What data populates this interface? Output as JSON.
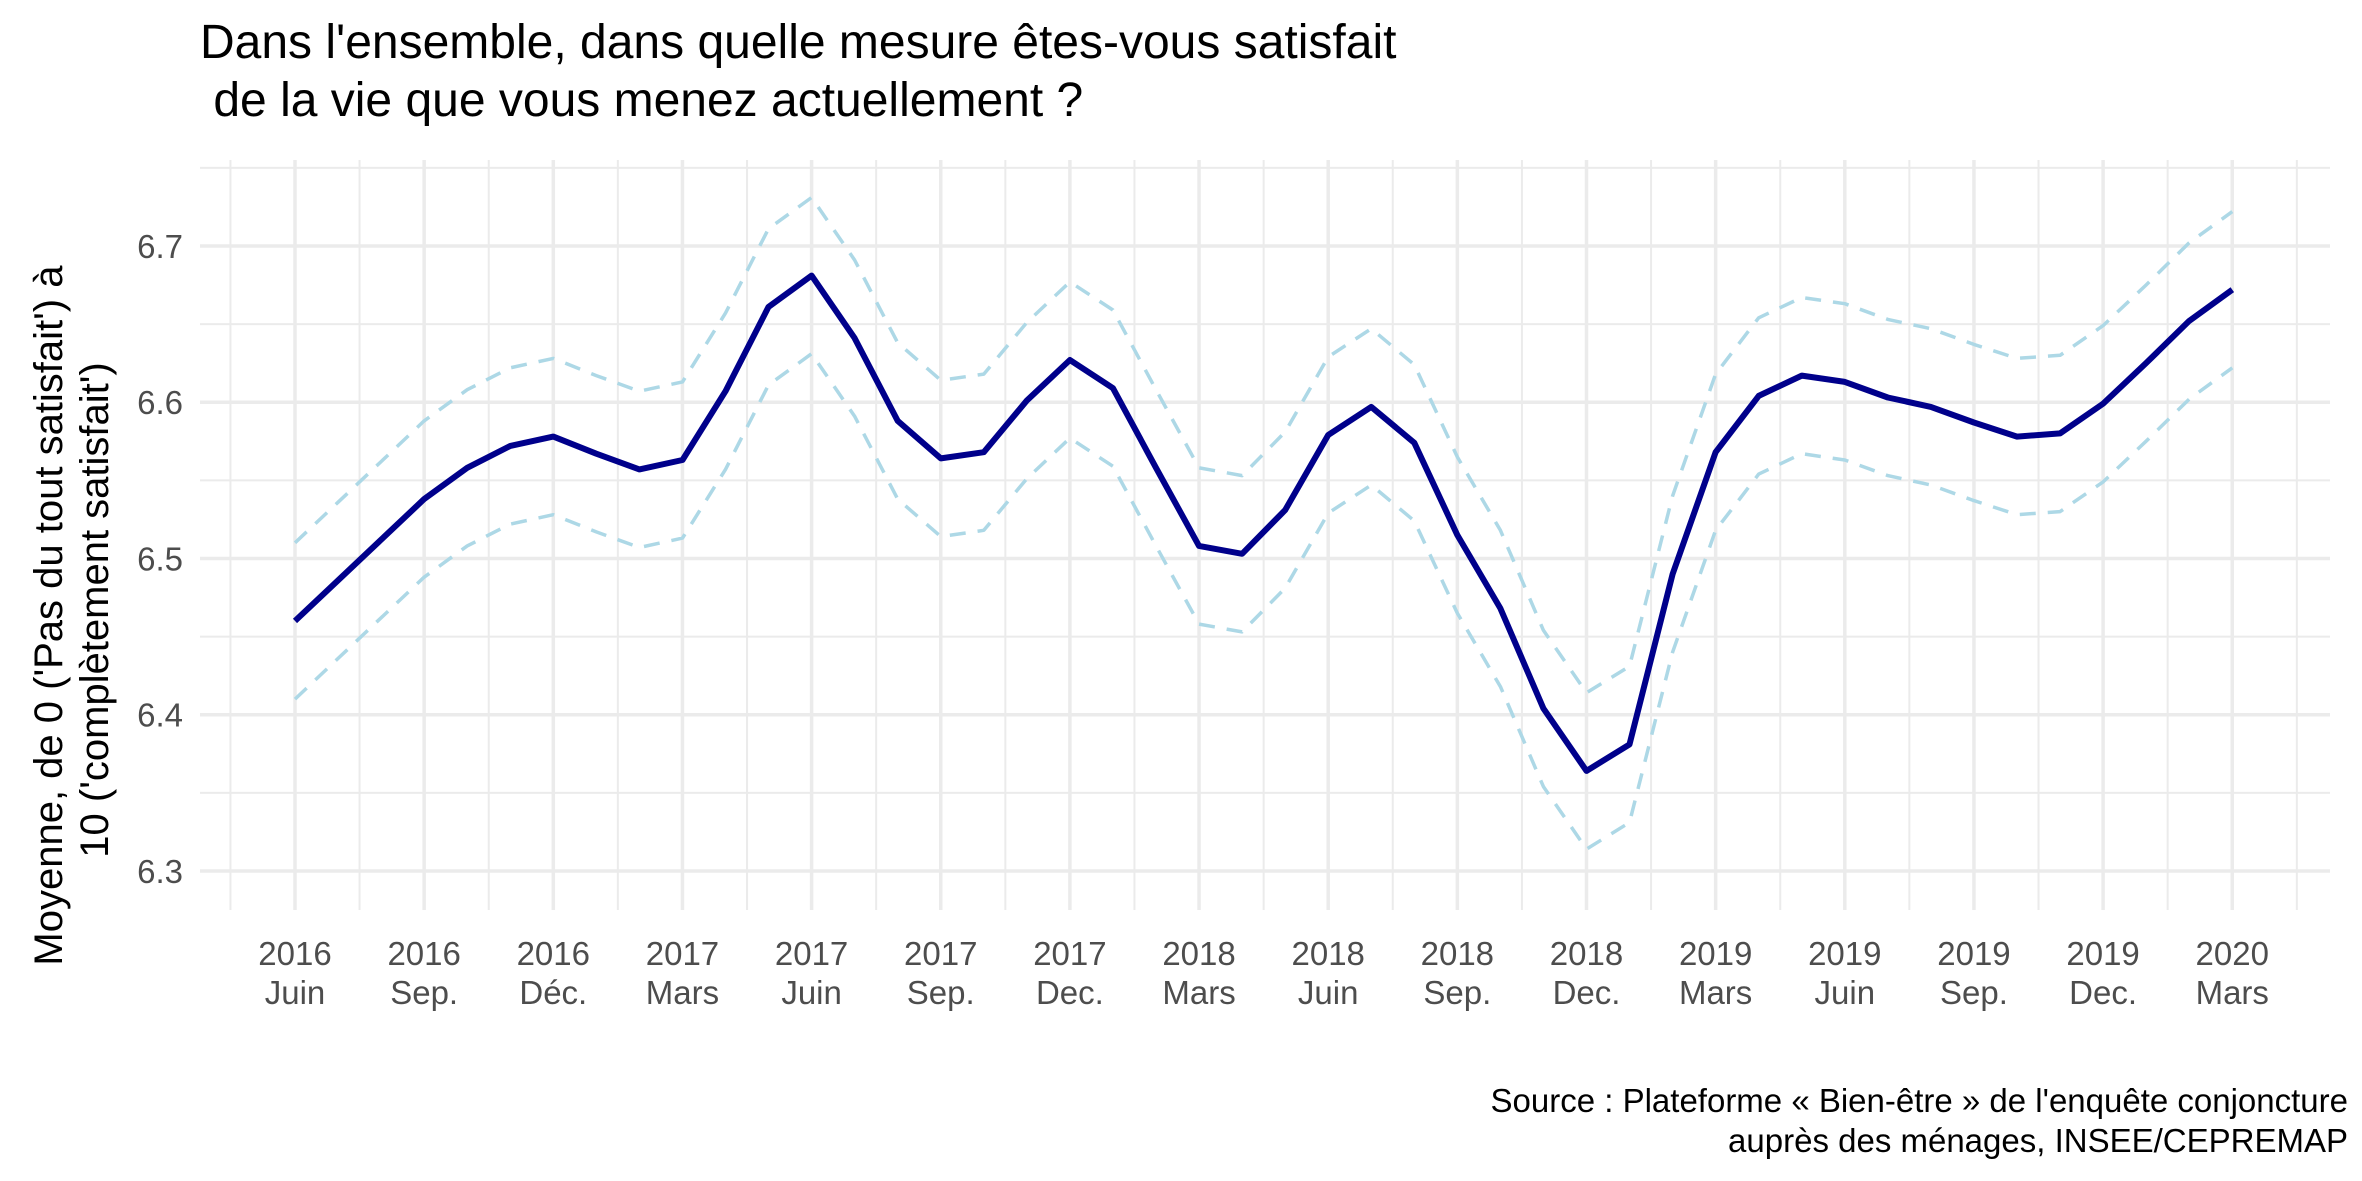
{
  "chart_data": {
    "type": "line",
    "title": "Dans l'ensemble, dans quelle mesure êtes-vous satisfait\n de la vie que vous menez actuellement ?",
    "ylabel_lines": [
      "Moyenne, de 0 ('Pas du tout satisfait') à",
      "10 ('complètement satisfait')"
    ],
    "xlabel": "",
    "caption_lines": [
      "Source : Plateforme « Bien-être » de l'enquête conjoncture ",
      "auprès des ménages, INSEE/CEPREMAP"
    ],
    "ylim": [
      6.275,
      6.755
    ],
    "yticks": [
      6.3,
      6.4,
      6.5,
      6.6,
      6.7
    ],
    "xticks": [
      {
        "date": "2016-06",
        "year": "2016",
        "month": "Juin"
      },
      {
        "date": "2016-09",
        "year": "2016",
        "month": "Sep."
      },
      {
        "date": "2016-12",
        "year": "2016",
        "month": "Déc."
      },
      {
        "date": "2017-03",
        "year": "2017",
        "month": "Mars"
      },
      {
        "date": "2017-06",
        "year": "2017",
        "month": "Juin"
      },
      {
        "date": "2017-09",
        "year": "2017",
        "month": "Sep."
      },
      {
        "date": "2017-12",
        "year": "2017",
        "month": "Dec."
      },
      {
        "date": "2018-03",
        "year": "2018",
        "month": "Mars"
      },
      {
        "date": "2018-06",
        "year": "2018",
        "month": "Juin"
      },
      {
        "date": "2018-09",
        "year": "2018",
        "month": "Sep."
      },
      {
        "date": "2018-12",
        "year": "2018",
        "month": "Dec."
      },
      {
        "date": "2019-03",
        "year": "2019",
        "month": "Mars"
      },
      {
        "date": "2019-06",
        "year": "2019",
        "month": "Juin"
      },
      {
        "date": "2019-09",
        "year": "2019",
        "month": "Sep."
      },
      {
        "date": "2019-12",
        "year": "2019",
        "month": "Dec."
      },
      {
        "date": "2020-03",
        "year": "2020",
        "month": "Mars"
      }
    ],
    "grid": true,
    "colors": {
      "mean": "#00008B",
      "ci": "#ADD8E6",
      "grid": "#EBEBEB"
    },
    "x": [
      "2016-06",
      "2016-07",
      "2016-08",
      "2016-09",
      "2016-10",
      "2016-11",
      "2016-12",
      "2017-01",
      "2017-02",
      "2017-03",
      "2017-04",
      "2017-05",
      "2017-06",
      "2017-07",
      "2017-08",
      "2017-09",
      "2017-10",
      "2017-11",
      "2017-12",
      "2018-01",
      "2018-02",
      "2018-03",
      "2018-04",
      "2018-05",
      "2018-06",
      "2018-07",
      "2018-08",
      "2018-09",
      "2018-10",
      "2018-11",
      "2018-12",
      "2019-01",
      "2019-02",
      "2019-03",
      "2019-04",
      "2019-05",
      "2019-06",
      "2019-07",
      "2019-08",
      "2019-09",
      "2019-10",
      "2019-11",
      "2019-12",
      "2020-01",
      "2020-02",
      "2020-03"
    ],
    "series": [
      {
        "line": "solid",
        "values": [
          6.46,
          6.486,
          6.512,
          6.538,
          6.558,
          6.572,
          6.578,
          6.567,
          6.557,
          6.563,
          6.607,
          6.661,
          6.681,
          6.641,
          6.588,
          6.564,
          6.568,
          6.601,
          6.627,
          6.609,
          6.558,
          6.508,
          6.503,
          6.531,
          6.579,
          6.597,
          6.574,
          6.515,
          6.468,
          6.404,
          6.364,
          6.381,
          6.49,
          6.568,
          6.604,
          6.617,
          6.613,
          6.603,
          6.597,
          6.587,
          6.578,
          6.58,
          6.599,
          6.625,
          6.652,
          6.672
        ]
      },
      {
        "line": "dashed",
        "values": [
          6.51,
          6.536,
          6.562,
          6.588,
          6.608,
          6.622,
          6.628,
          6.617,
          6.607,
          6.613,
          6.657,
          6.711,
          6.731,
          6.691,
          6.638,
          6.614,
          6.618,
          6.651,
          6.677,
          6.659,
          6.608,
          6.558,
          6.553,
          6.581,
          6.629,
          6.647,
          6.624,
          6.565,
          6.518,
          6.454,
          6.414,
          6.431,
          6.54,
          6.618,
          6.654,
          6.667,
          6.663,
          6.653,
          6.647,
          6.637,
          6.628,
          6.63,
          6.649,
          6.675,
          6.702,
          6.722
        ]
      },
      {
        "line": "dashed",
        "values": [
          6.41,
          6.436,
          6.462,
          6.488,
          6.508,
          6.522,
          6.528,
          6.517,
          6.507,
          6.513,
          6.557,
          6.611,
          6.631,
          6.591,
          6.538,
          6.514,
          6.518,
          6.551,
          6.577,
          6.559,
          6.508,
          6.458,
          6.453,
          6.481,
          6.529,
          6.547,
          6.524,
          6.465,
          6.418,
          6.354,
          6.314,
          6.331,
          6.44,
          6.518,
          6.554,
          6.567,
          6.563,
          6.553,
          6.547,
          6.537,
          6.528,
          6.53,
          6.549,
          6.575,
          6.602,
          6.622
        ]
      }
    ]
  }
}
